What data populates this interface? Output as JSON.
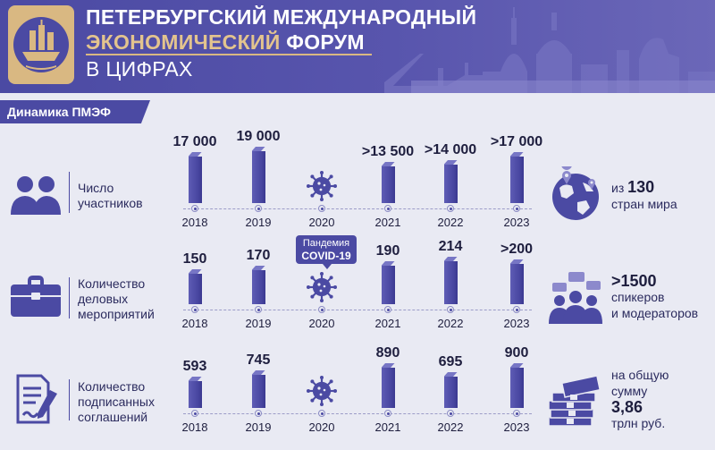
{
  "header": {
    "title_line1": "ПЕТЕРБУРГСКИЙ МЕЖДУНАРОДНЫЙ",
    "title_line2_gold": "ЭКОНОМИЧЕСКИЙ",
    "title_line2_white": " ФОРУМ",
    "title_line3": "В ЦИФРАХ",
    "logo_icon": "ship-emblem-icon",
    "accent_color": "#4b4aa3",
    "gold_color": "#d9b882"
  },
  "section": {
    "label": "Динамика ПМЭФ"
  },
  "rows": [
    {
      "label_lines": [
        "Число",
        "участников"
      ],
      "icon": "people-icon"
    },
    {
      "label_lines": [
        "Количество",
        "деловых",
        "мероприятий"
      ],
      "icon": "briefcase-icon"
    },
    {
      "label_lines": [
        "Количество",
        "подписанных",
        "соглашений"
      ],
      "icon": "document-pen-icon"
    }
  ],
  "pandemic": {
    "line1": "Пандемия",
    "line2": "COVID-19",
    "icon": "virus-icon"
  },
  "chart_data": [
    {
      "type": "bar",
      "categories": [
        "2018",
        "2019",
        "2020",
        "2021",
        "2022",
        "2023"
      ],
      "values": [
        17000,
        19000,
        null,
        13500,
        14000,
        17000
      ],
      "data_labels": [
        "17 000",
        "19 000",
        "",
        ">13 500",
        ">14 000",
        ">17 000"
      ],
      "title": "Число участников"
    },
    {
      "type": "bar",
      "categories": [
        "2018",
        "2019",
        "2020",
        "2021",
        "2022",
        "2023"
      ],
      "values": [
        150,
        170,
        null,
        190,
        214,
        200
      ],
      "data_labels": [
        "150",
        "170",
        "",
        "190",
        "214",
        ">200"
      ],
      "title": "Количество деловых мероприятий"
    },
    {
      "type": "bar",
      "categories": [
        "2018",
        "2019",
        "2020",
        "2021",
        "2022",
        "2023"
      ],
      "values": [
        593,
        745,
        null,
        890,
        695,
        900
      ],
      "data_labels": [
        "593",
        "745",
        "",
        "890",
        "695",
        "900"
      ],
      "title": "Количество подписанных соглашений"
    }
  ],
  "stats": [
    {
      "pre": "из ",
      "big": "130",
      "line2": "стран мира",
      "icon": "globe-icon"
    },
    {
      "big": ">1500",
      "line2": "спикеров",
      "line3": "и модераторов",
      "icon": "speakers-icon"
    },
    {
      "line1": "на общую",
      "line2": "сумму",
      "big": "3,86",
      "line4": "трлн руб.",
      "icon": "money-icon"
    }
  ]
}
